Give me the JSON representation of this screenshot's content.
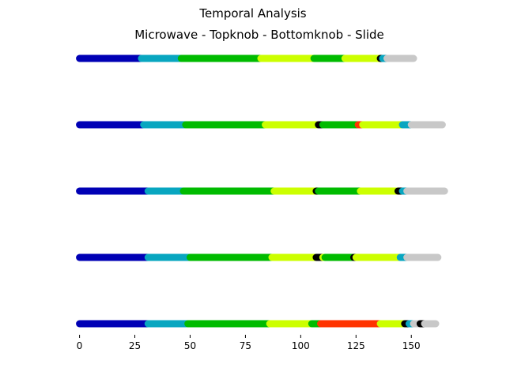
{
  "chart_data": {
    "type": "timeline",
    "title": "Temporal Analysis",
    "subtitle": "Microwave - Topknob - Bottomknob - Slide",
    "xlabel": "",
    "ylabel": "",
    "xlim": [
      -2,
      166
    ],
    "xticks": [
      0,
      25,
      50,
      75,
      100,
      125,
      150
    ],
    "grid": false,
    "colors": {
      "blue": "#0000b5",
      "teal": "#08a6c0",
      "green": "#00bb00",
      "yellow": "#ccff00",
      "black": "#000000",
      "red": "#ff3300",
      "gray": "#c8c8c8"
    },
    "rows": [
      {
        "segments": [
          {
            "start": 0,
            "end": 28,
            "color": "blue"
          },
          {
            "start": 28,
            "end": 46,
            "color": "teal"
          },
          {
            "start": 46,
            "end": 82,
            "color": "green"
          },
          {
            "start": 82,
            "end": 106,
            "color": "yellow"
          },
          {
            "start": 106,
            "end": 120,
            "color": "green"
          },
          {
            "start": 120,
            "end": 136,
            "color": "yellow"
          },
          {
            "start": 136,
            "end": 137,
            "color": "black"
          },
          {
            "start": 137,
            "end": 139,
            "color": "teal"
          },
          {
            "start": 139,
            "end": 151,
            "color": "gray"
          }
        ]
      },
      {
        "segments": [
          {
            "start": 0,
            "end": 29,
            "color": "blue"
          },
          {
            "start": 29,
            "end": 48,
            "color": "teal"
          },
          {
            "start": 48,
            "end": 84,
            "color": "green"
          },
          {
            "start": 84,
            "end": 108,
            "color": "yellow"
          },
          {
            "start": 108,
            "end": 110,
            "color": "black"
          },
          {
            "start": 110,
            "end": 126,
            "color": "green"
          },
          {
            "start": 126,
            "end": 128,
            "color": "red"
          },
          {
            "start": 128,
            "end": 146,
            "color": "yellow"
          },
          {
            "start": 146,
            "end": 150,
            "color": "teal"
          },
          {
            "start": 150,
            "end": 164,
            "color": "gray"
          }
        ]
      },
      {
        "segments": [
          {
            "start": 0,
            "end": 31,
            "color": "blue"
          },
          {
            "start": 31,
            "end": 47,
            "color": "teal"
          },
          {
            "start": 47,
            "end": 88,
            "color": "green"
          },
          {
            "start": 88,
            "end": 107,
            "color": "yellow"
          },
          {
            "start": 107,
            "end": 108,
            "color": "black"
          },
          {
            "start": 108,
            "end": 127,
            "color": "green"
          },
          {
            "start": 127,
            "end": 144,
            "color": "yellow"
          },
          {
            "start": 144,
            "end": 146,
            "color": "black"
          },
          {
            "start": 146,
            "end": 148,
            "color": "teal"
          },
          {
            "start": 148,
            "end": 165,
            "color": "gray"
          }
        ]
      },
      {
        "segments": [
          {
            "start": 0,
            "end": 31,
            "color": "blue"
          },
          {
            "start": 31,
            "end": 50,
            "color": "teal"
          },
          {
            "start": 50,
            "end": 87,
            "color": "green"
          },
          {
            "start": 87,
            "end": 107,
            "color": "yellow"
          },
          {
            "start": 107,
            "end": 110,
            "color": "black"
          },
          {
            "start": 110,
            "end": 111,
            "color": "yellow"
          },
          {
            "start": 111,
            "end": 124,
            "color": "green"
          },
          {
            "start": 124,
            "end": 125,
            "color": "black"
          },
          {
            "start": 125,
            "end": 145,
            "color": "yellow"
          },
          {
            "start": 145,
            "end": 148,
            "color": "teal"
          },
          {
            "start": 148,
            "end": 162,
            "color": "gray"
          }
        ]
      },
      {
        "segments": [
          {
            "start": 0,
            "end": 31,
            "color": "blue"
          },
          {
            "start": 31,
            "end": 49,
            "color": "teal"
          },
          {
            "start": 49,
            "end": 86,
            "color": "green"
          },
          {
            "start": 86,
            "end": 105,
            "color": "yellow"
          },
          {
            "start": 105,
            "end": 109,
            "color": "green"
          },
          {
            "start": 109,
            "end": 136,
            "color": "red"
          },
          {
            "start": 136,
            "end": 147,
            "color": "yellow"
          },
          {
            "start": 147,
            "end": 149,
            "color": "black"
          },
          {
            "start": 149,
            "end": 151,
            "color": "teal"
          },
          {
            "start": 151,
            "end": 154,
            "color": "gray"
          },
          {
            "start": 154,
            "end": 156,
            "color": "black"
          },
          {
            "start": 156,
            "end": 161,
            "color": "gray"
          }
        ]
      }
    ]
  }
}
